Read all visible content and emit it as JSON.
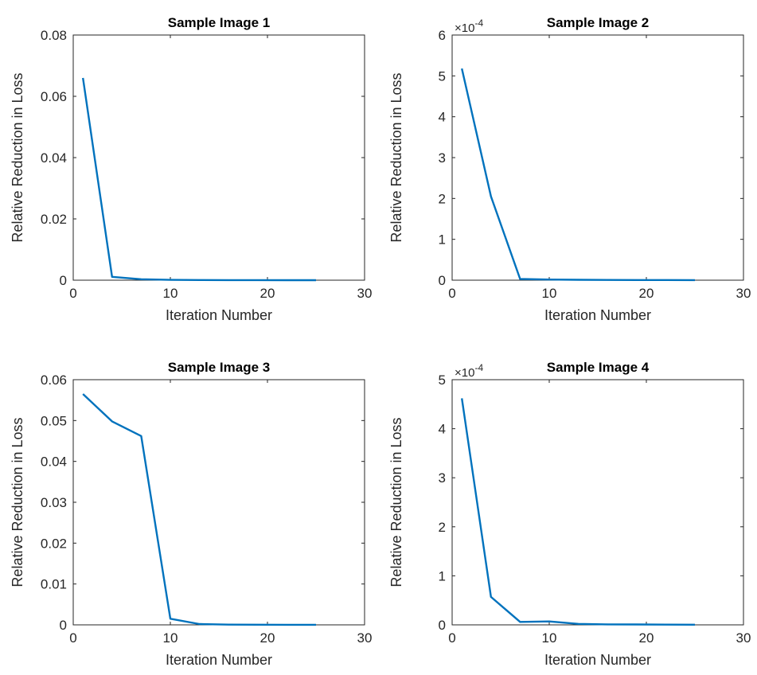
{
  "chart_data": [
    {
      "type": "line",
      "title": "Sample Image 1",
      "xlabel": "Iteration Number",
      "ylabel": "Relative Reduction in Loss",
      "xlim": [
        0,
        30
      ],
      "ylim": [
        0,
        0.08
      ],
      "xticks": [
        "0",
        "10",
        "20",
        "30"
      ],
      "yticks": [
        "0",
        "0.02",
        "0.04",
        "0.06",
        "0.08"
      ],
      "exponent": "",
      "grid": false,
      "line_color": "#0072BD",
      "series": [
        {
          "x": [
            1,
            4,
            7,
            10,
            13,
            16,
            19,
            22,
            25
          ],
          "y": [
            0.066,
            0.0011,
            0.0003,
            0.0001,
            5e-05,
            3e-05,
            2e-05,
            1e-05,
            1e-05
          ]
        }
      ]
    },
    {
      "type": "line",
      "title": "Sample Image 2",
      "xlabel": "Iteration Number",
      "ylabel": "Relative Reduction in Loss",
      "xlim": [
        0,
        30
      ],
      "ylim": [
        0,
        6
      ],
      "xticks": [
        "0",
        "10",
        "20",
        "30"
      ],
      "yticks": [
        "0",
        "1",
        "2",
        "3",
        "4",
        "5",
        "6"
      ],
      "exponent": "×10",
      "exponent_power": "-4",
      "grid": false,
      "line_color": "#0072BD",
      "series": [
        {
          "x": [
            1,
            4,
            7,
            10,
            13,
            16,
            19,
            22,
            25
          ],
          "y": [
            5.18,
            2.05,
            0.03,
            0.015,
            0.01,
            0.005,
            0.004,
            0.003,
            0.002
          ]
        }
      ]
    },
    {
      "type": "line",
      "title": "Sample Image 3",
      "xlabel": "Iteration Number",
      "ylabel": "Relative Reduction in Loss",
      "xlim": [
        0,
        30
      ],
      "ylim": [
        0,
        0.06
      ],
      "xticks": [
        "0",
        "10",
        "20",
        "30"
      ],
      "yticks": [
        "0",
        "0.01",
        "0.02",
        "0.03",
        "0.04",
        "0.05",
        "0.06"
      ],
      "exponent": "",
      "grid": false,
      "line_color": "#0072BD",
      "series": [
        {
          "x": [
            1,
            4,
            7,
            10,
            13,
            16,
            19,
            22,
            25
          ],
          "y": [
            0.0565,
            0.0498,
            0.0462,
            0.0015,
            0.0002,
            5e-05,
            3e-05,
            2e-05,
            1e-05
          ]
        }
      ]
    },
    {
      "type": "line",
      "title": "Sample Image 4",
      "xlabel": "Iteration Number",
      "ylabel": "Relative Reduction in Loss",
      "xlim": [
        0,
        30
      ],
      "ylim": [
        0,
        5
      ],
      "xticks": [
        "0",
        "10",
        "20",
        "30"
      ],
      "yticks": [
        "0",
        "1",
        "2",
        "3",
        "4",
        "5"
      ],
      "exponent": "×10",
      "exponent_power": "-4",
      "grid": false,
      "line_color": "#0072BD",
      "series": [
        {
          "x": [
            1,
            4,
            7,
            10,
            13,
            16,
            19,
            22,
            25
          ],
          "y": [
            4.62,
            0.57,
            0.06,
            0.07,
            0.02,
            0.01,
            0.008,
            0.005,
            0.003
          ]
        }
      ]
    }
  ]
}
